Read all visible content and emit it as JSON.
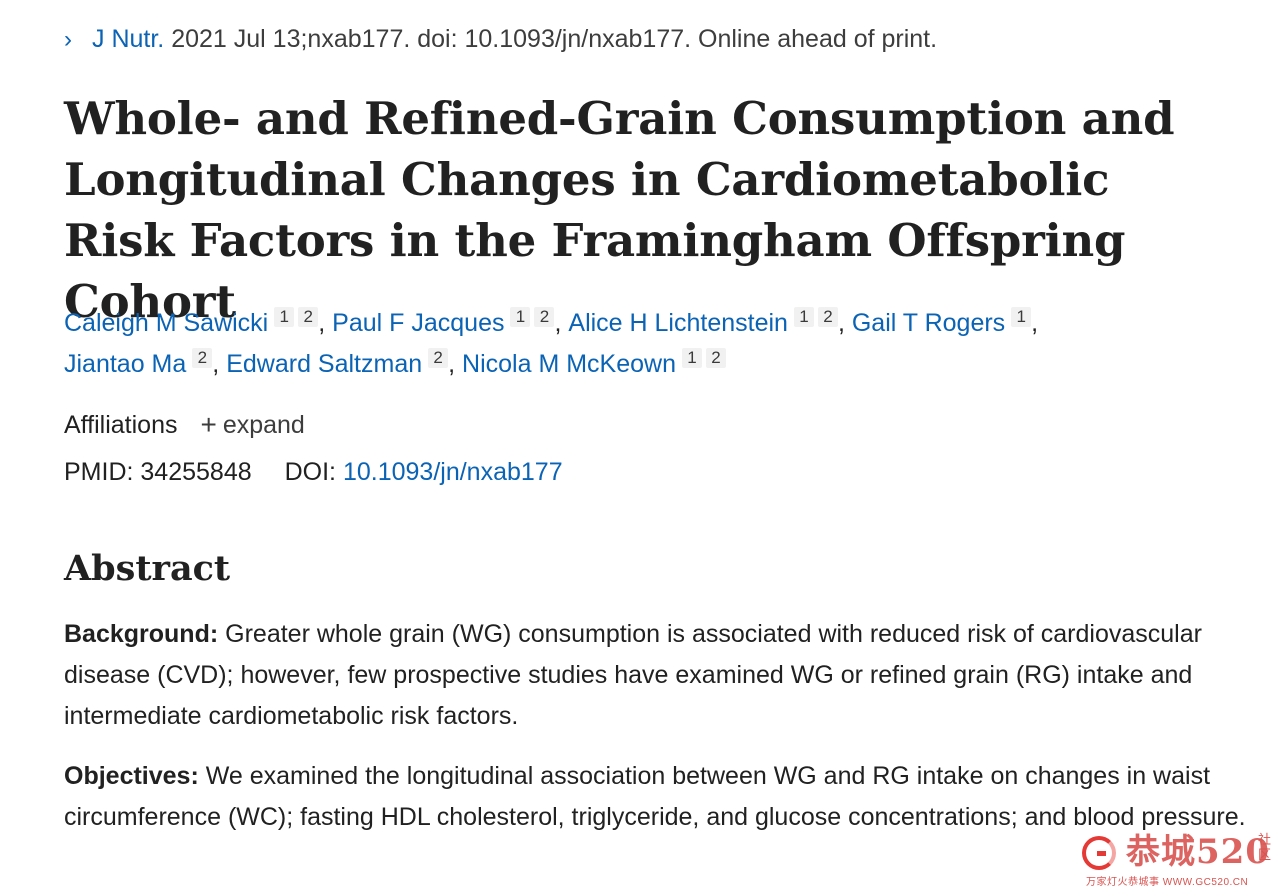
{
  "citation": {
    "chevron": "›",
    "journal": "J Nutr.",
    "details": "2021 Jul 13;nxab177. doi: 10.1093/jn/nxab177. Online ahead of print."
  },
  "title": "Whole- and Refined-Grain Consumption and Longitudinal Changes in Cardiometabolic Risk Factors in the Framingham Offspring Cohort",
  "authors": [
    {
      "name": "Caleigh M Sawicki",
      "affils": [
        "1",
        "2"
      ],
      "sep": ", "
    },
    {
      "name": "Paul F Jacques",
      "affils": [
        "1",
        "2"
      ],
      "sep": ", "
    },
    {
      "name": "Alice H Lichtenstein",
      "affils": [
        "1",
        "2"
      ],
      "sep": ", "
    },
    {
      "name": "Gail T Rogers",
      "affils": [
        "1"
      ],
      "sep": ","
    },
    {
      "name": "Jiantao Ma",
      "affils": [
        "2"
      ],
      "sep": ", "
    },
    {
      "name": "Edward Saltzman",
      "affils": [
        "2"
      ],
      "sep": ", "
    },
    {
      "name": "Nicola M McKeown",
      "affils": [
        "1",
        "2"
      ],
      "sep": ""
    }
  ],
  "affiliations": {
    "label": "Affiliations",
    "plus": "+",
    "expand": "expand"
  },
  "ids": {
    "pmid_label": "PMID:",
    "pmid": "34255848",
    "doi_label": "DOI:",
    "doi": "10.1093/jn/nxab177"
  },
  "abstract": {
    "heading": "Abstract",
    "background_label": "Background:",
    "background_text": "Greater whole grain (WG) consumption is associated with reduced risk of cardiovascular disease (CVD); however, few prospective studies have examined WG or refined grain (RG) intake and intermediate cardiometabolic risk factors.",
    "objectives_label": "Objectives:",
    "objectives_text": "We examined the longitudinal association between WG and RG intake on changes in waist circumference (WC); fasting HDL cholesterol, triglyceride, and glucose concentrations; and blood pressure."
  },
  "watermark": {
    "brand": "恭城520",
    "side": "社区",
    "url": "万家灯火恭城事 WWW.GC520.CN"
  },
  "colors": {
    "link": "#0b63b5",
    "text": "#212121",
    "watermark": "#d9534f"
  }
}
